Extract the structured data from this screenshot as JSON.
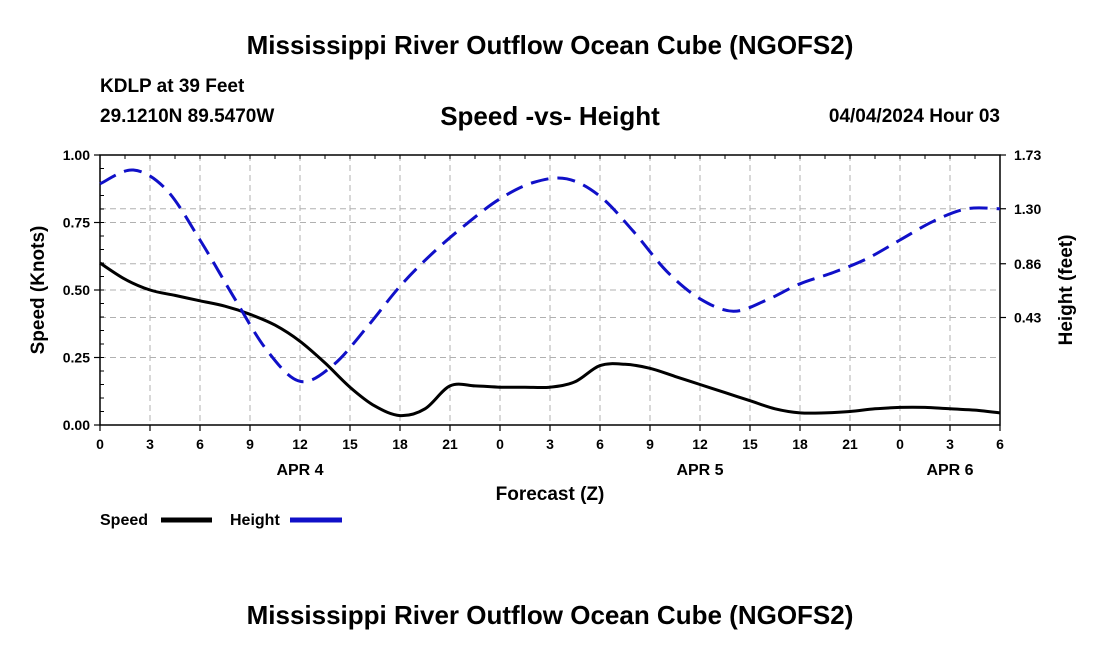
{
  "header": {
    "title": "Mississippi River Outflow Ocean Cube (NGOFS2)",
    "station": "KDLP at 39 Feet",
    "coords": "29.1210N  89.5470W",
    "subtitle": "Speed -vs- Height",
    "datestamp": "04/04/2024 Hour 03"
  },
  "footer": {
    "title": "Mississippi River Outflow Ocean Cube (NGOFS2)"
  },
  "chart_data": {
    "type": "line",
    "title": "Speed -vs- Height",
    "xlabel": "Forecast (Z)",
    "ylabel_left": "Speed (Knots)",
    "ylabel_right": "Height (feet)",
    "x_range_hours": [
      0,
      54
    ],
    "x_tick_step_hours": 3,
    "x_tick_labels": [
      "0",
      "3",
      "6",
      "9",
      "12",
      "15",
      "18",
      "21",
      "0",
      "3",
      "6",
      "9",
      "12",
      "15",
      "18",
      "21",
      "0",
      "3",
      "6"
    ],
    "date_labels": [
      {
        "hour": 12,
        "label": "APR 4"
      },
      {
        "hour": 36,
        "label": "APR 5"
      },
      {
        "hour": 51,
        "label": "APR 6"
      }
    ],
    "y_left": {
      "range": [
        0,
        1
      ],
      "ticks": [
        0,
        0.25,
        0.5,
        0.75,
        1.0
      ],
      "tick_labels": [
        "0.00",
        "0.25",
        "0.50",
        "0.75",
        "1.00"
      ]
    },
    "y_right": {
      "range": [
        -0.43,
        1.73
      ],
      "ticks": [
        0.43,
        0.86,
        1.3,
        1.73
      ],
      "tick_labels": [
        "0.43",
        "0.86",
        "1.30",
        "1.73"
      ]
    },
    "grid": true,
    "series": [
      {
        "name": "Speed",
        "axis": "left",
        "color": "#000000",
        "dash": "solid",
        "points": [
          [
            0,
            0.6
          ],
          [
            1.5,
            0.54
          ],
          [
            3,
            0.5
          ],
          [
            4.5,
            0.48
          ],
          [
            6,
            0.46
          ],
          [
            7.5,
            0.44
          ],
          [
            9,
            0.41
          ],
          [
            10.5,
            0.37
          ],
          [
            12,
            0.31
          ],
          [
            13.5,
            0.23
          ],
          [
            15,
            0.14
          ],
          [
            16.5,
            0.07
          ],
          [
            18,
            0.035
          ],
          [
            19.5,
            0.06
          ],
          [
            21,
            0.145
          ],
          [
            22.5,
            0.145
          ],
          [
            24,
            0.14
          ],
          [
            25.5,
            0.14
          ],
          [
            27,
            0.14
          ],
          [
            28.5,
            0.16
          ],
          [
            30,
            0.22
          ],
          [
            31.5,
            0.225
          ],
          [
            33,
            0.21
          ],
          [
            34.5,
            0.18
          ],
          [
            36,
            0.15
          ],
          [
            37.5,
            0.12
          ],
          [
            39,
            0.09
          ],
          [
            40.5,
            0.06
          ],
          [
            42,
            0.045
          ],
          [
            43.5,
            0.045
          ],
          [
            45,
            0.05
          ],
          [
            46.5,
            0.06
          ],
          [
            48,
            0.065
          ],
          [
            49.5,
            0.065
          ],
          [
            51,
            0.06
          ],
          [
            52.5,
            0.055
          ],
          [
            54,
            0.045
          ]
        ]
      },
      {
        "name": "Height",
        "axis": "right",
        "color": "#1010c8",
        "dash": "dashed",
        "points": [
          [
            0,
            1.5
          ],
          [
            2,
            1.61
          ],
          [
            4,
            1.45
          ],
          [
            6,
            1.05
          ],
          [
            8,
            0.6
          ],
          [
            10,
            0.17
          ],
          [
            12,
            -0.08
          ],
          [
            14,
            0.05
          ],
          [
            16,
            0.35
          ],
          [
            18,
            0.68
          ],
          [
            20,
            0.95
          ],
          [
            22,
            1.18
          ],
          [
            24,
            1.38
          ],
          [
            26,
            1.51
          ],
          [
            28,
            1.54
          ],
          [
            30,
            1.4
          ],
          [
            32,
            1.12
          ],
          [
            34,
            0.8
          ],
          [
            36,
            0.58
          ],
          [
            38,
            0.48
          ],
          [
            40,
            0.57
          ],
          [
            42,
            0.7
          ],
          [
            44,
            0.79
          ],
          [
            46,
            0.9
          ],
          [
            48,
            1.05
          ],
          [
            50,
            1.2
          ],
          [
            52,
            1.3
          ],
          [
            54,
            1.3
          ]
        ]
      }
    ],
    "legend": {
      "position": "bottom-left",
      "entries": [
        "Speed",
        "Height"
      ]
    }
  }
}
